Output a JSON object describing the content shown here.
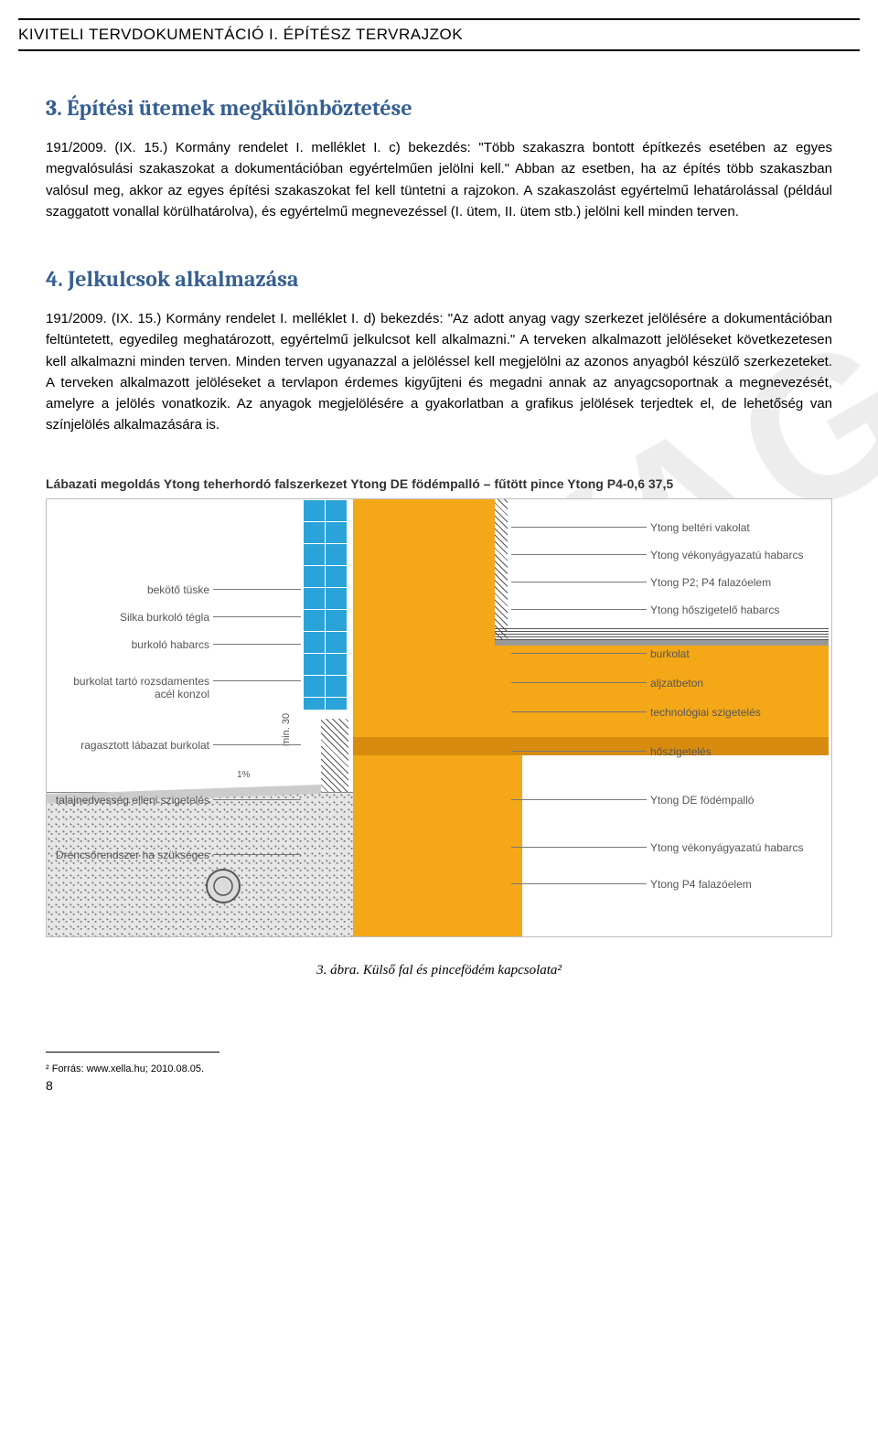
{
  "header": {
    "title": "KIVITELI TERVDOKUMENTÁCIÓ I. ÉPÍTÉSZ TERVRAJZOK"
  },
  "section3": {
    "heading": "3. Építési ütemek megkülönböztetése",
    "body": "191/2009. (IX. 15.) Kormány rendelet I. melléklet I. c) bekezdés: \"Több szakaszra bontott építkezés esetében az egyes megvalósulási szakaszokat a dokumentációban egyértelműen jelölni kell.\" Abban az esetben, ha az építés több szakaszban valósul meg, akkor az egyes építési szakaszokat fel kell tüntetni a rajzokon. A szakaszolást egyértelmű lehatárolással (például szaggatott vonallal körülhatárolva), és egyértelmű megnevezéssel (I. ütem, II. ütem stb.) jelölni kell minden terven."
  },
  "section4": {
    "heading": "4. Jelkulcsok alkalmazása",
    "body": "191/2009. (IX. 15.) Kormány rendelet I. melléklet I. d) bekezdés: \"Az adott anyag vagy szerkezet jelölésére a dokumentációban feltüntetett, egyedileg meghatározott, egyértelmű jelkulcsot kell alkalmazni.\" A terveken alkalmazott jelöléseket következetesen kell alkalmazni minden terven. Minden terven ugyanazzal a jelöléssel kell megjelölni az azonos anyagból készülő szerkezeteket. A terveken alkalmazott jelöléseket a tervlapon érdemes kigyűjteni és megadni annak az anyagcsoportnak a megnevezését, amelyre a jelölés vonatkozik. Az anyagok megjelölésére a gyakorlatban a grafikus jelölések terjedtek el, de lehetőség van színjelölés alkalmazására is."
  },
  "figure": {
    "title": "Lábazati megoldás Ytong teherhordó falszerkezet Ytong DE födémpalló – fűtött pince Ytong P4-0,6 37,5",
    "caption": "3. ábra. Külső fal és pincefödém kapcsolata²",
    "dim_label": "min. 30",
    "slope_label": "1%",
    "labels_left": [
      "bekötő tüske",
      "Silka burkoló tégla",
      "burkoló habarcs",
      "burkolat tartó rozsdamentes\nacél konzol",
      "ragasztott lábazat\nburkolat",
      "talajnedvesség\nelleni szigetelés",
      "Dréncsőrendszer\nha szükséges"
    ],
    "labels_right": [
      "Ytong beltéri vakolat",
      "Ytong vékonyágyazatú habarcs",
      "Ytong P2; P4 falazóelem",
      "Ytong hőszigetelő habarcs",
      "burkolat",
      "aljzatbeton",
      "technológiai\nszigetelés",
      "hőszigetelés",
      "Ytong DE födémpalló",
      "Ytong vékonyágyazatú habarcs",
      "Ytong P4 falazóelem"
    ],
    "colors": {
      "wall_ytong": "#f4a817",
      "wall_silka": "#2aa3d9",
      "border": "#bdbdbd",
      "label_text": "#555555",
      "leader": "#777777",
      "background": "#ffffff"
    },
    "left_y": [
      98,
      128,
      158,
      198,
      268,
      328,
      388
    ],
    "right_y": [
      30,
      60,
      90,
      120,
      168,
      200,
      232,
      275,
      328,
      380,
      420
    ]
  },
  "footnote": "² Forrás: www.xella.hu; 2010.08.05.",
  "page_number": "8",
  "watermark": "ANYAG"
}
